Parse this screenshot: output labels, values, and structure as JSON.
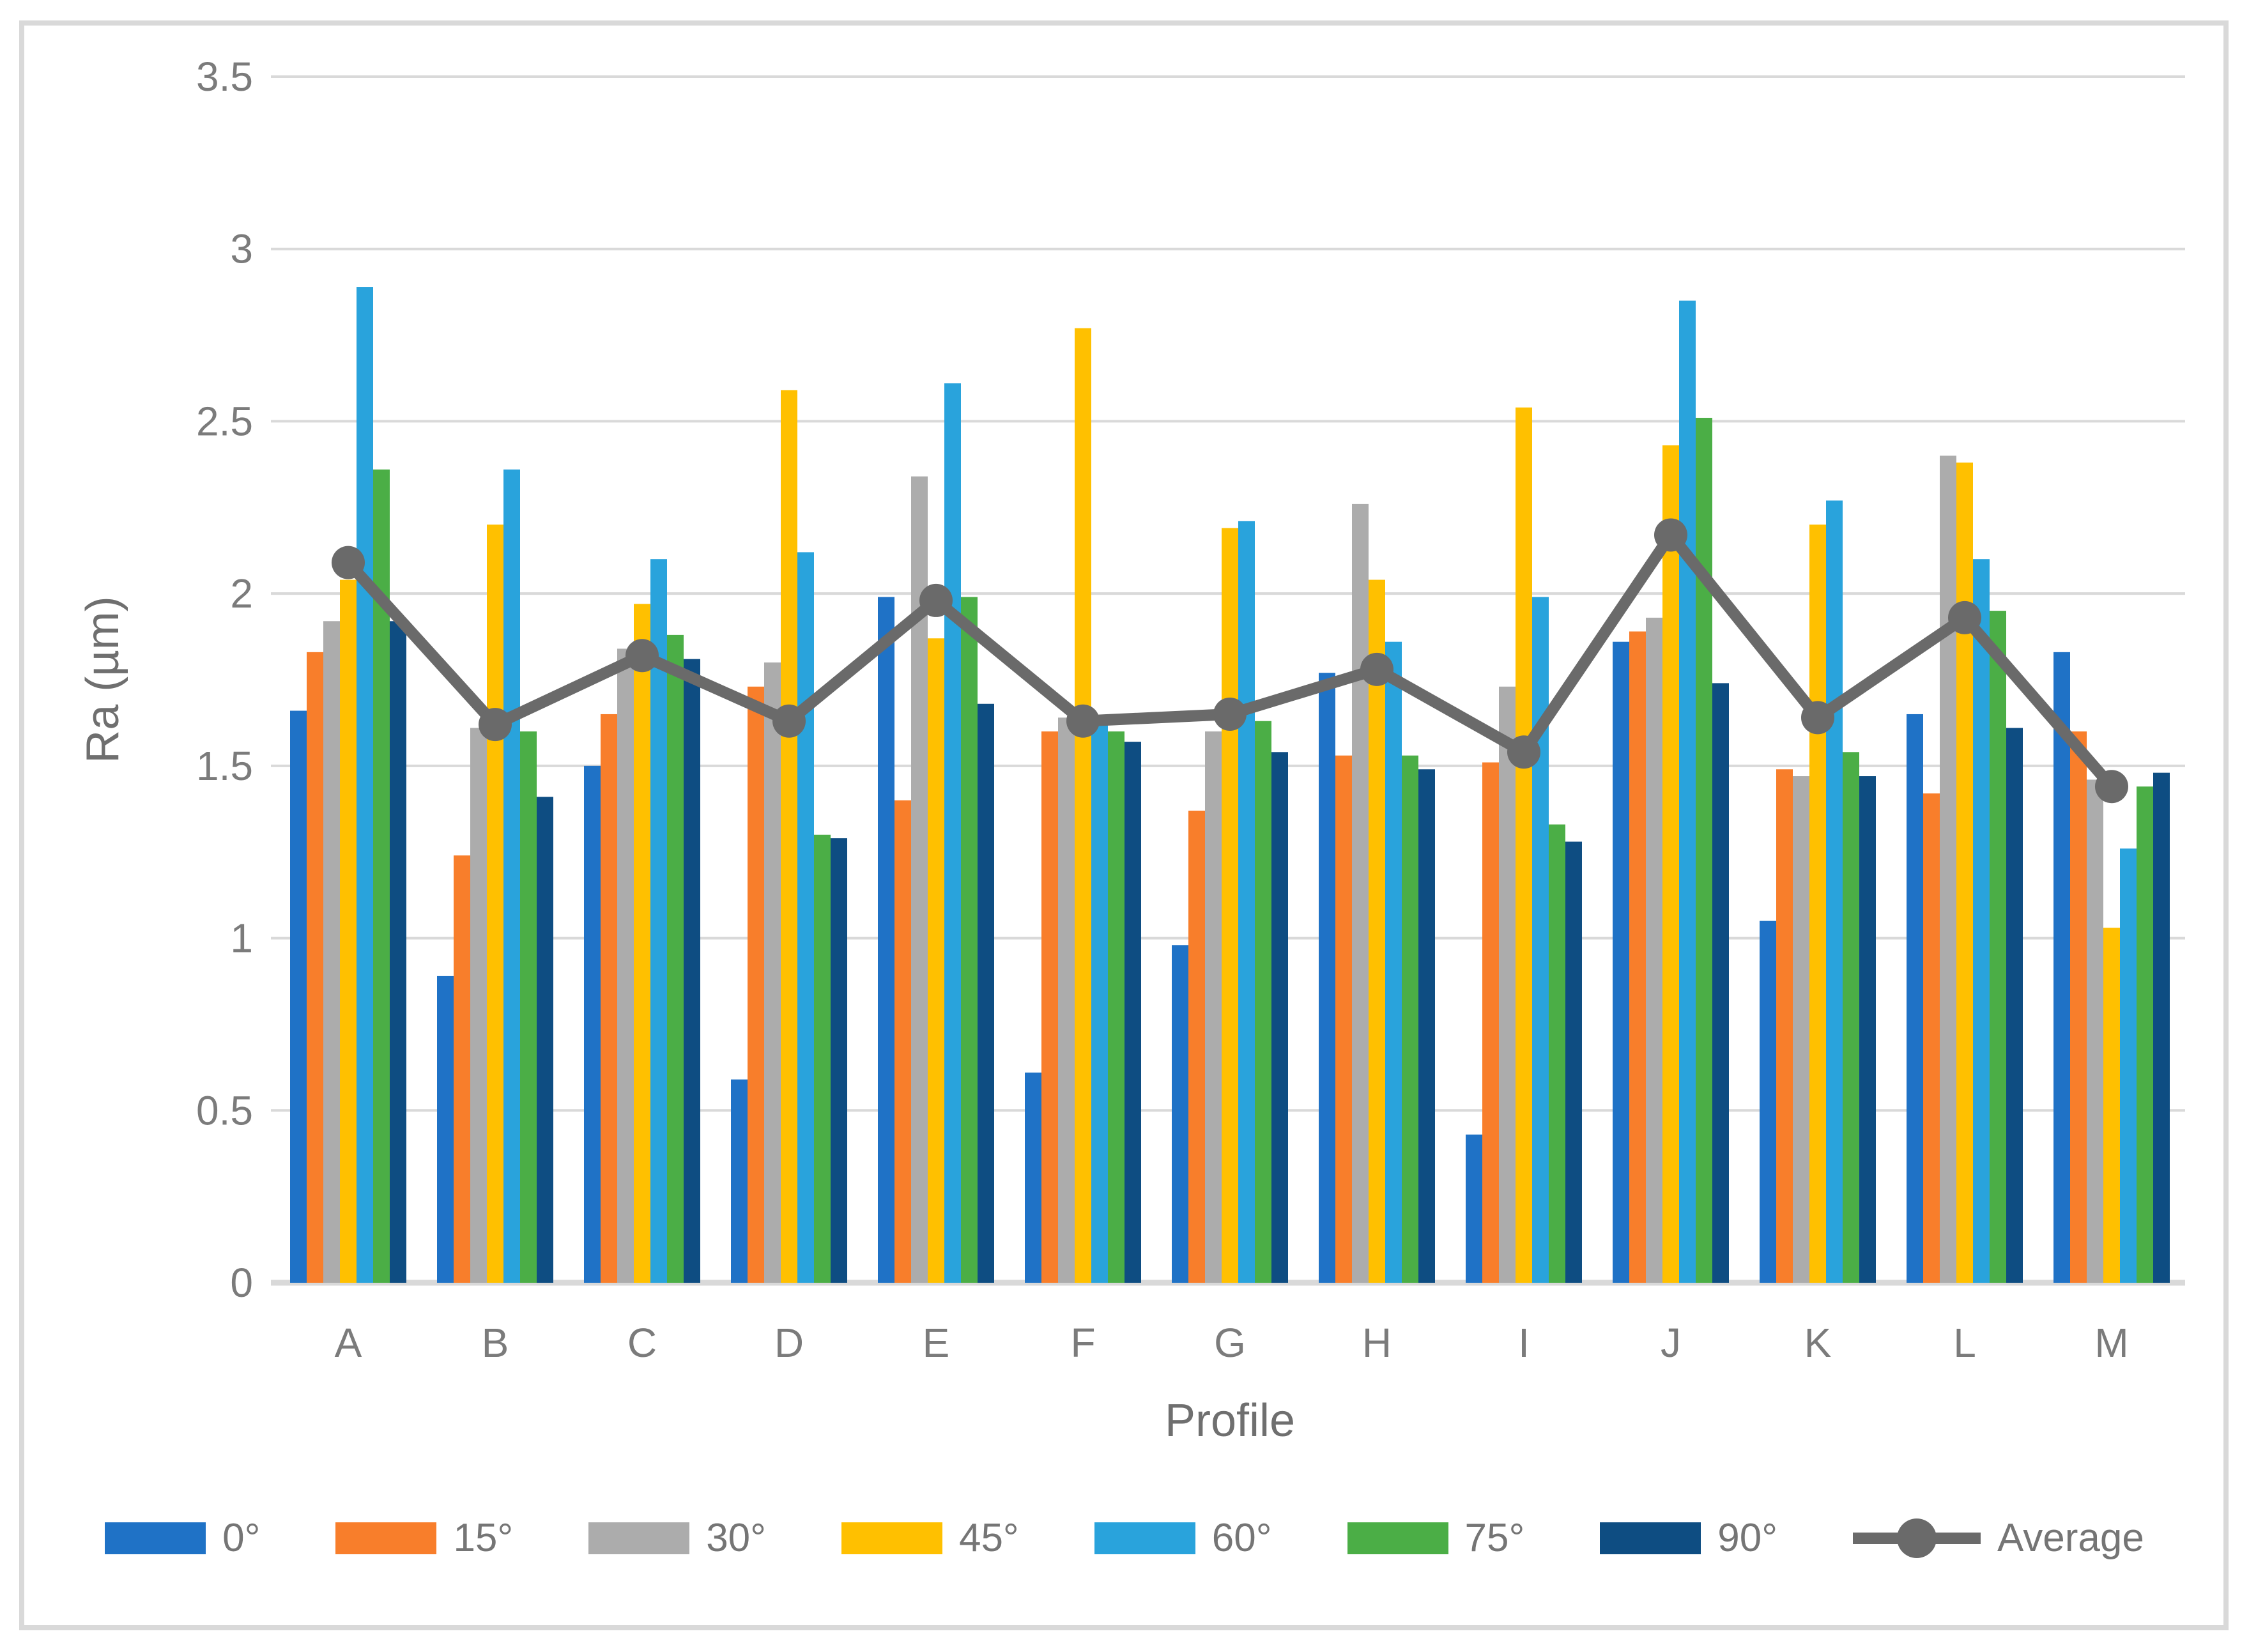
{
  "figure": {
    "background_color": "#FFFFFF",
    "frame_border_color": "#D9D9D9",
    "gridline_color": "#D9D9D9",
    "tick_label_color": "#7B7B7B",
    "axis_title_color": "#6F6F6F",
    "legend_label_color": "#757575"
  },
  "chart_data": {
    "type": "bar",
    "title": "",
    "xlabel": "Profile",
    "ylabel": "Ra (µm)",
    "ylim": [
      0,
      3.5
    ],
    "ytick_step": 0.5,
    "ytick_labels": [
      "0",
      "0.5",
      "1",
      "1.5",
      "2",
      "2.5",
      "3",
      "3.5"
    ],
    "grid": true,
    "legend_position": "bottom",
    "categories": [
      "A",
      "B",
      "C",
      "D",
      "E",
      "F",
      "G",
      "H",
      "I",
      "J",
      "K",
      "L",
      "M"
    ],
    "series": [
      {
        "name": "0°",
        "type": "bar",
        "color": "#1F72C6",
        "values": [
          1.66,
          0.89,
          1.5,
          0.59,
          1.99,
          0.61,
          0.98,
          1.77,
          0.43,
          1.86,
          1.05,
          1.65,
          1.83
        ]
      },
      {
        "name": "15°",
        "type": "bar",
        "color": "#F87E2B",
        "values": [
          1.83,
          1.24,
          1.65,
          1.73,
          1.4,
          1.6,
          1.37,
          1.53,
          1.51,
          1.89,
          1.49,
          1.42,
          1.6
        ]
      },
      {
        "name": "30°",
        "type": "bar",
        "color": "#ACACAC",
        "values": [
          1.92,
          1.61,
          1.84,
          1.8,
          2.34,
          1.64,
          1.6,
          2.26,
          1.73,
          1.93,
          1.47,
          2.4,
          1.46
        ]
      },
      {
        "name": "45°",
        "type": "bar",
        "color": "#FFC000",
        "values": [
          2.04,
          2.2,
          1.97,
          2.59,
          1.87,
          2.77,
          2.19,
          2.04,
          2.54,
          2.43,
          2.2,
          2.38,
          1.03
        ]
      },
      {
        "name": "60°",
        "type": "bar",
        "color": "#29A3DC",
        "values": [
          2.89,
          2.36,
          2.1,
          2.12,
          2.61,
          1.62,
          2.21,
          1.86,
          1.99,
          2.85,
          2.27,
          2.1,
          1.26
        ]
      },
      {
        "name": "75°",
        "type": "bar",
        "color": "#4BAE46",
        "values": [
          2.36,
          1.6,
          1.88,
          1.3,
          1.99,
          1.6,
          1.63,
          1.53,
          1.33,
          2.51,
          1.54,
          1.95,
          1.44
        ]
      },
      {
        "name": "90°",
        "type": "bar",
        "color": "#0E4D82",
        "values": [
          1.92,
          1.41,
          1.81,
          1.29,
          1.68,
          1.57,
          1.54,
          1.49,
          1.28,
          1.74,
          1.47,
          1.61,
          1.48
        ]
      },
      {
        "name": "Average",
        "type": "line",
        "color": "#6A6A6A",
        "values": [
          2.09,
          1.62,
          1.82,
          1.63,
          1.98,
          1.63,
          1.65,
          1.78,
          1.54,
          2.17,
          1.64,
          1.93,
          1.44
        ]
      }
    ]
  }
}
